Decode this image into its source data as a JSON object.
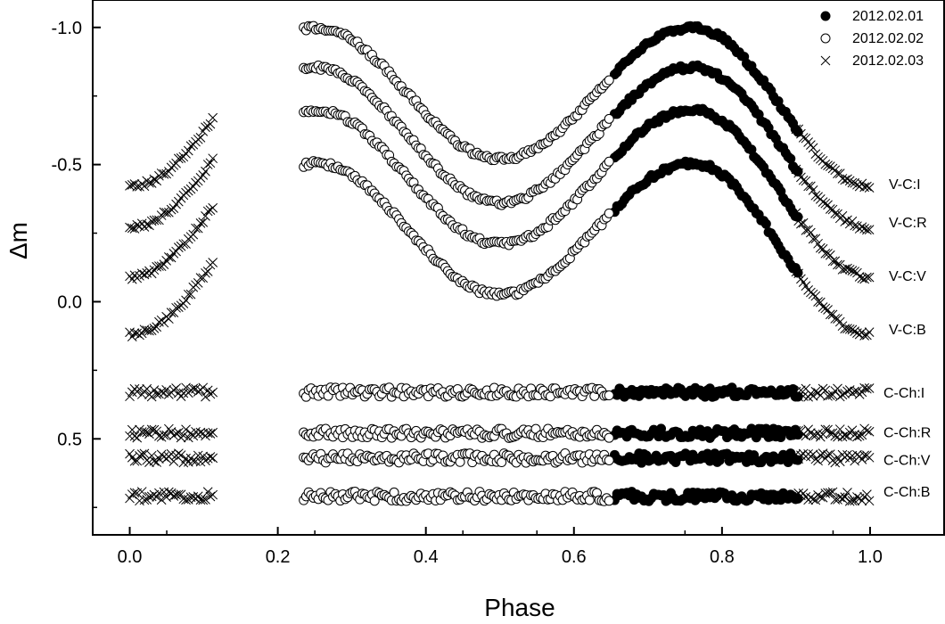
{
  "chart_data": {
    "type": "scatter",
    "title": "",
    "xlabel": "Phase",
    "ylabel": "Δm",
    "xlim": [
      -0.05,
      1.1
    ],
    "ylim": [
      0.85,
      -1.1
    ],
    "y_inverted": true,
    "x_ticks": [
      0.0,
      0.2,
      0.4,
      0.6,
      0.8,
      1.0
    ],
    "x_tick_labels": [
      "0.0",
      "0.2",
      "0.4",
      "0.6",
      "0.8",
      "1.0"
    ],
    "y_ticks": [
      -1.0,
      -0.5,
      0.0,
      0.5
    ],
    "y_tick_labels": [
      "-1.0",
      "-0.5",
      "0.0",
      "0.5"
    ],
    "grid": false,
    "legend_position": "top-right",
    "legend": [
      {
        "name": "2012.02.01",
        "marker": "filled-circle",
        "phase_ranges": [
          [
            0.655,
            0.905
          ]
        ]
      },
      {
        "name": "2012.02.02",
        "marker": "open-circle",
        "phase_ranges": [
          [
            0.235,
            0.65
          ]
        ]
      },
      {
        "name": "2012.02.03",
        "marker": "cross",
        "phase_ranges": [
          [
            0.0,
            0.115
          ],
          [
            0.9,
            1.0
          ]
        ]
      }
    ],
    "light_curves": [
      {
        "label": "V-C:I",
        "max_dm": -1.0,
        "min1_dm": -0.42,
        "min2_dm": -0.52,
        "label_y": -0.43
      },
      {
        "label": "V-C:R",
        "max_dm": -0.855,
        "min1_dm": -0.27,
        "min2_dm": -0.36,
        "label_y": -0.29
      },
      {
        "label": "V-C:V",
        "max_dm": -0.7,
        "min1_dm": -0.09,
        "min2_dm": -0.21,
        "label_y": -0.095
      },
      {
        "label": "V-C:B",
        "max_dm": -0.505,
        "min1_dm": 0.12,
        "min2_dm": -0.025,
        "label_y": 0.1
      }
    ],
    "comparison_curves": [
      {
        "label": "C-Ch:I",
        "mean_dm": 0.33,
        "label_y": 0.33
      },
      {
        "label": "C-Ch:R",
        "mean_dm": 0.48,
        "label_y": 0.475
      },
      {
        "label": "C-Ch:V",
        "mean_dm": 0.57,
        "label_y": 0.575
      },
      {
        "label": "C-Ch:B",
        "mean_dm": 0.71,
        "label_y": 0.69
      }
    ],
    "point_step": 0.0033
  }
}
